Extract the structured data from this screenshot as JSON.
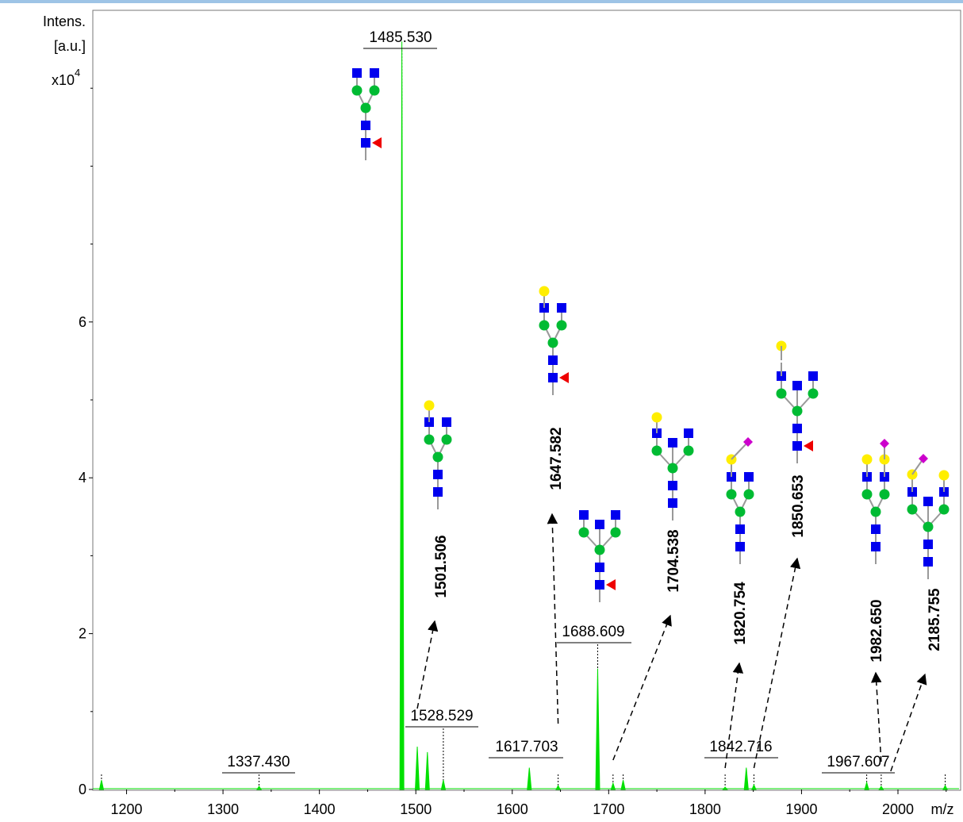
{
  "chart_data": {
    "type": "line",
    "title": "",
    "ylabel_lines": [
      "Intens.",
      "[a.u.]",
      "x10"
    ],
    "ylabel_exponent": "4",
    "xlabel": "m/z",
    "xlim": [
      1165,
      2065
    ],
    "ylim": [
      0,
      10
    ],
    "x_ticks": [
      1200,
      1300,
      1400,
      1500,
      1600,
      1700,
      1800,
      1900,
      2000
    ],
    "x_tick_labels": [
      "1200",
      "1300",
      "1400",
      "1500",
      "1600",
      "1700",
      "1800",
      "1900",
      "2000"
    ],
    "y_ticks": [
      0,
      2,
      4,
      6
    ],
    "y_tick_labels": [
      "0",
      "2",
      "4",
      "6"
    ],
    "series_color": "#00e000",
    "peaks": [
      {
        "x": 1174,
        "y": 0.12
      },
      {
        "x": 1337.43,
        "y": 0.04
      },
      {
        "x": 1485.53,
        "y": 9.6
      },
      {
        "x": 1501.506,
        "y": 0.55
      },
      {
        "x": 1512,
        "y": 0.48
      },
      {
        "x": 1528.529,
        "y": 0.12
      },
      {
        "x": 1617.703,
        "y": 0.28
      },
      {
        "x": 1647.582,
        "y": 0.05
      },
      {
        "x": 1688.609,
        "y": 1.55
      },
      {
        "x": 1704.538,
        "y": 0.08
      },
      {
        "x": 1715,
        "y": 0.12
      },
      {
        "x": 1820.754,
        "y": 0.03
      },
      {
        "x": 1842.716,
        "y": 0.28
      },
      {
        "x": 1850.653,
        "y": 0.06
      },
      {
        "x": 1967.607,
        "y": 0.09
      },
      {
        "x": 1982.65,
        "y": 0.04
      },
      {
        "x": 2049,
        "y": 0.05
      }
    ],
    "peak_labels": [
      {
        "text": "1485.530",
        "x": 1485.53
      },
      {
        "text": "1337.430",
        "x": 1337.43
      },
      {
        "text": "1528.529",
        "x": 1528.529
      },
      {
        "text": "1617.703",
        "x": 1617.703
      },
      {
        "text": "1688.609",
        "x": 1688.609
      },
      {
        "text": "1842.716",
        "x": 1842.716
      },
      {
        "text": "1967.607",
        "x": 1967.607
      }
    ],
    "rotated_labels": [
      "1501.506",
      "1647.582",
      "1704.538",
      "1820.754",
      "1850.653",
      "1982.650",
      "2185.755"
    ],
    "glycan_colors": {
      "GlcNAc": "#0000ee",
      "Man": "#00bb33",
      "Gal": "#ffee00",
      "Fuc": "#ee0000",
      "NeuAc": "#cc00cc"
    }
  }
}
